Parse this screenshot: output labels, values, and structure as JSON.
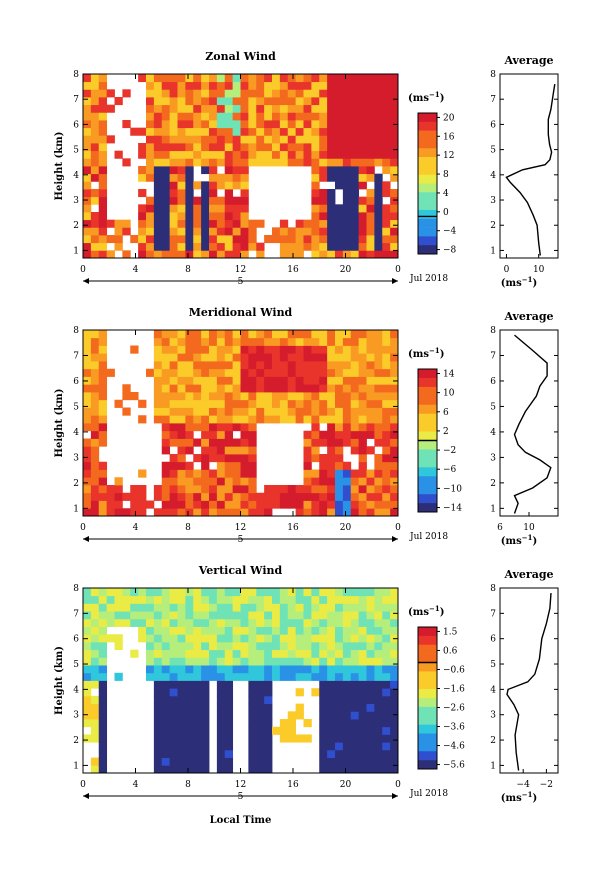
{
  "chart_data": [
    {
      "type": "heatmap",
      "title": "Zonal Wind",
      "ylabel": "Height (km)",
      "xlabel": "",
      "x_ticks": [
        "0",
        "4",
        "8",
        "12",
        "16",
        "20",
        "0"
      ],
      "xlim": [
        0,
        24
      ],
      "y_ticks": [
        "1",
        "2",
        "3",
        "4",
        "5",
        "6",
        "7",
        "8"
      ],
      "ylim": [
        0.7,
        8.0
      ],
      "date_label": "Jul 2018",
      "day_label": "5",
      "colorbar": {
        "unit": "(ms",
        "unit_exp": "−1",
        "unit_close": ")",
        "levels": [
          "20",
          "16",
          "12",
          "8",
          "4",
          "0",
          "−4",
          "−8"
        ],
        "range": [
          -8,
          22
        ]
      },
      "profile": {
        "title": "Average",
        "x_ticks": [
          "0",
          "10"
        ],
        "xlim": [
          -2,
          16
        ],
        "xlabel": "(ms",
        "xlabel_exp": "−1",
        "xlabel_close": ")",
        "points": [
          [
            10.5,
            0.8
          ],
          [
            10.0,
            1.3
          ],
          [
            9.5,
            2.0
          ],
          [
            8.3,
            2.4
          ],
          [
            6.5,
            2.9
          ],
          [
            4.2,
            3.3
          ],
          [
            1.2,
            3.7
          ],
          [
            0.0,
            3.9
          ],
          [
            5.0,
            4.2
          ],
          [
            12.0,
            4.4
          ],
          [
            13.5,
            4.6
          ],
          [
            14.0,
            4.9
          ],
          [
            13.4,
            5.2
          ],
          [
            13.0,
            5.6
          ],
          [
            13.0,
            6.2
          ],
          [
            13.8,
            6.6
          ],
          [
            14.5,
            7.2
          ],
          [
            15.0,
            7.6
          ]
        ]
      }
    },
    {
      "type": "heatmap",
      "title": "Meridional Wind",
      "ylabel": "Height (km)",
      "xlabel": "",
      "x_ticks": [
        "0",
        "4",
        "8",
        "12",
        "16",
        "20",
        "0"
      ],
      "xlim": [
        0,
        24
      ],
      "y_ticks": [
        "1",
        "2",
        "3",
        "4",
        "5",
        "6",
        "7",
        "8"
      ],
      "ylim": [
        0.7,
        8.0
      ],
      "date_label": "Jul 2018",
      "day_label": "5",
      "colorbar": {
        "unit": "(ms",
        "unit_exp": "−1",
        "unit_close": ")",
        "levels": [
          "14",
          "10",
          "6",
          "2",
          "−2",
          "−6",
          "−10",
          "−14"
        ],
        "range": [
          -16,
          16
        ]
      },
      "profile": {
        "title": "Average",
        "x_ticks": [
          "6",
          "10"
        ],
        "xlim": [
          6,
          14
        ],
        "xlabel": "(ms",
        "xlabel_exp": "−1",
        "xlabel_close": ")",
        "points": [
          [
            8.0,
            0.8
          ],
          [
            8.5,
            1.2
          ],
          [
            8.0,
            1.5
          ],
          [
            10.5,
            1.8
          ],
          [
            12.5,
            2.2
          ],
          [
            13.0,
            2.6
          ],
          [
            11.5,
            2.9
          ],
          [
            9.5,
            3.2
          ],
          [
            8.5,
            3.5
          ],
          [
            8.0,
            3.9
          ],
          [
            8.6,
            4.3
          ],
          [
            9.5,
            4.8
          ],
          [
            11.0,
            5.4
          ],
          [
            11.5,
            5.8
          ],
          [
            12.5,
            6.2
          ],
          [
            12.5,
            6.7
          ],
          [
            10.5,
            7.2
          ],
          [
            8.0,
            7.8
          ]
        ]
      }
    },
    {
      "type": "heatmap",
      "title": "Vertical Wind",
      "ylabel": "Height (km)",
      "xlabel": "Local Time",
      "x_ticks": [
        "0",
        "4",
        "8",
        "12",
        "16",
        "20",
        "0"
      ],
      "xlim": [
        0,
        24
      ],
      "y_ticks": [
        "1",
        "2",
        "3",
        "4",
        "5",
        "6",
        "7",
        "8"
      ],
      "ylim": [
        0.7,
        8.0
      ],
      "date_label": "Jul 2018",
      "day_label": "5",
      "colorbar": {
        "unit": "(ms",
        "unit_exp": "−1",
        "unit_close": ")",
        "levels": [
          "1.5",
          "0.6",
          "−0.6",
          "−1.6",
          "−2.6",
          "−3.6",
          "−4.6",
          "−5.6"
        ],
        "range": [
          -6,
          2
        ]
      },
      "profile": {
        "title": "Average",
        "x_ticks": [
          "−4",
          "−2"
        ],
        "xlim": [
          -6,
          -1
        ],
        "xlabel": "(ms",
        "xlabel_exp": "−1",
        "xlabel_close": ")",
        "points": [
          [
            -4.4,
            0.8
          ],
          [
            -4.6,
            1.5
          ],
          [
            -4.7,
            2.2
          ],
          [
            -4.4,
            3.0
          ],
          [
            -4.8,
            3.4
          ],
          [
            -5.4,
            3.8
          ],
          [
            -5.3,
            4.0
          ],
          [
            -3.6,
            4.3
          ],
          [
            -3.0,
            4.6
          ],
          [
            -2.6,
            5.2
          ],
          [
            -2.4,
            6.0
          ],
          [
            -2.0,
            6.6
          ],
          [
            -1.7,
            7.2
          ],
          [
            -1.6,
            7.8
          ]
        ]
      }
    }
  ]
}
